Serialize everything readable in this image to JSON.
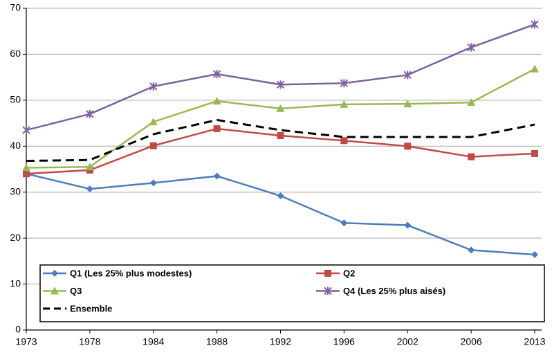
{
  "chart_data": {
    "type": "line",
    "categories": [
      "1973",
      "1978",
      "1984",
      "1988",
      "1992",
      "1996",
      "2002",
      "2006",
      "2013"
    ],
    "series": [
      {
        "name": "Q1 (Les 25% plus modestes)",
        "color": "#4a7ebb",
        "marker": "diamond",
        "values": [
          34.0,
          30.7,
          32.0,
          33.5,
          29.2,
          23.3,
          22.8,
          17.4,
          16.4
        ]
      },
      {
        "name": "Q2",
        "color": "#be4b48",
        "marker": "square",
        "values": [
          34.0,
          34.8,
          40.1,
          43.8,
          42.3,
          41.2,
          40.0,
          37.7,
          38.4
        ]
      },
      {
        "name": "Q3",
        "color": "#98b954",
        "marker": "triangle",
        "values": [
          35.3,
          35.5,
          45.3,
          49.8,
          48.2,
          49.1,
          49.2,
          49.5,
          56.8
        ]
      },
      {
        "name": "Q4 (Les 25% plus aisés)",
        "color": "#7d60a0",
        "marker": "cross",
        "values": [
          43.5,
          47.0,
          53.0,
          55.7,
          53.4,
          53.7,
          55.5,
          61.5,
          66.5
        ]
      },
      {
        "name": "Ensemble",
        "color": "#000000",
        "marker": "none",
        "dashed": true,
        "values": [
          36.8,
          37.0,
          42.6,
          45.7,
          43.5,
          42.0,
          42.0,
          42.0,
          44.7
        ]
      }
    ],
    "ylim": [
      0,
      70
    ],
    "yticks": [
      0,
      10,
      20,
      30,
      40,
      50,
      60,
      70
    ],
    "grid": true
  }
}
